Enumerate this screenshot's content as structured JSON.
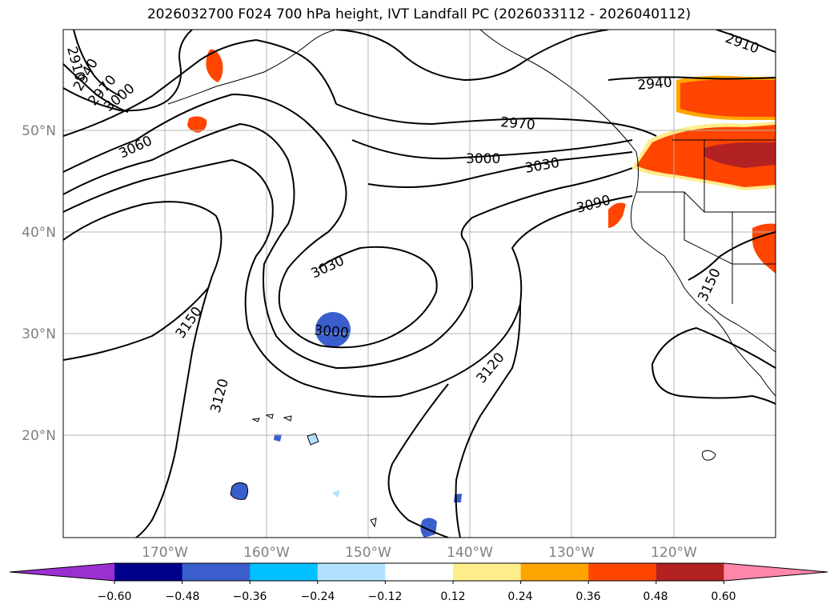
{
  "title": "2026032700 F024 700 hPa height, IVT Landfall PC (2026033112 - 2026040112)",
  "map": {
    "lat_labels": [
      "50°N",
      "40°N",
      "30°N",
      "20°N"
    ],
    "lon_labels": [
      "170°W",
      "160°W",
      "150°W",
      "140°W",
      "130°W",
      "120°W"
    ],
    "lon_range": [
      -180,
      -110
    ],
    "lat_range": [
      10,
      60
    ],
    "grid": true
  },
  "contours": {
    "variable": "700 hPa height",
    "labels": [
      "2910",
      "2940",
      "2970",
      "3000",
      "3060",
      "2940",
      "2970",
      "3000",
      "3030",
      "3090",
      "3030",
      "3000",
      "3150",
      "3120",
      "3120",
      "3150",
      "2910"
    ]
  },
  "colorbar": {
    "ticks": [
      "−0.60",
      "−0.48",
      "−0.36",
      "−0.24",
      "−0.12",
      "0.12",
      "0.24",
      "0.36",
      "0.48",
      "0.60"
    ],
    "colors": [
      "#9b30d0",
      "#00008b",
      "#3a5fcd",
      "#00bfff",
      "#b0e2ff",
      "#ffffff",
      "#ffec8b",
      "#ffa500",
      "#ff4500",
      "#b22222",
      "#ff88aa"
    ]
  }
}
